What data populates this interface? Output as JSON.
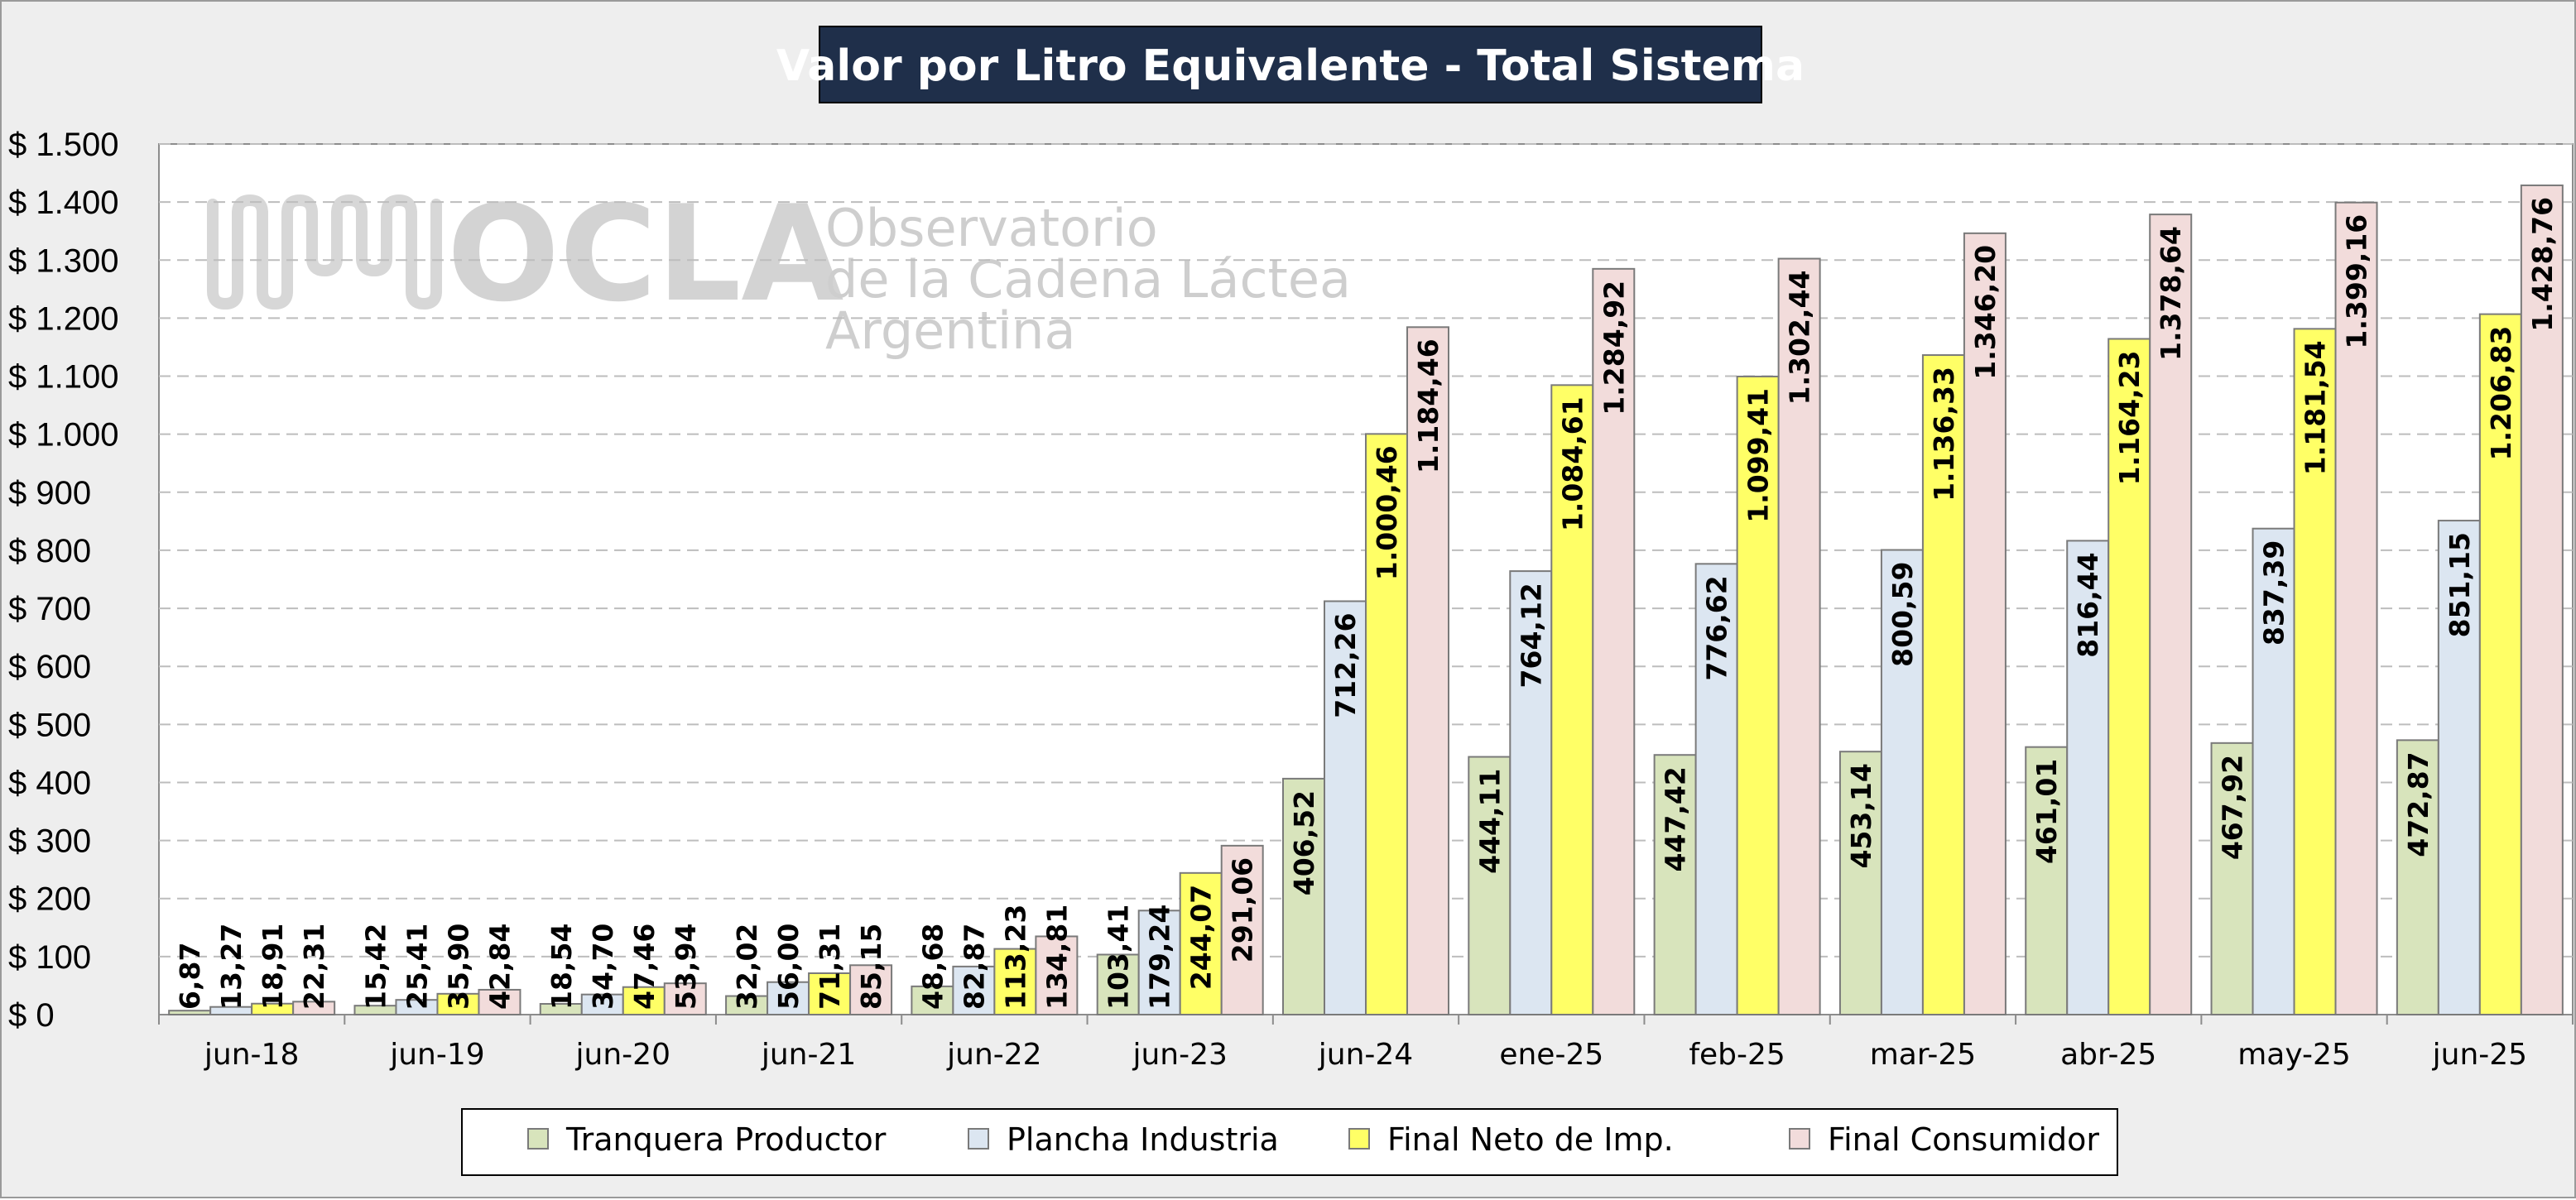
{
  "watermark": {
    "logo": "OCLA",
    "line1": "Observatorio",
    "line2": "de la Cadena Láctea",
    "line3": "Argentina"
  },
  "chart_data": {
    "type": "bar",
    "title": "Valor por Litro Equivalente - Total Sistema",
    "xlabel": "",
    "ylabel": "",
    "ylim": [
      0,
      1500
    ],
    "yticks": [
      0,
      100,
      200,
      300,
      400,
      500,
      600,
      700,
      800,
      900,
      1000,
      1100,
      1200,
      1300,
      1400,
      1500
    ],
    "ytick_labels": [
      "$ 0",
      "$ 100",
      "$ 200",
      "$ 300",
      "$ 400",
      "$ 500",
      "$ 600",
      "$ 700",
      "$ 800",
      "$ 900",
      "$ 1.000",
      "$ 1.100",
      "$ 1.200",
      "$ 1.300",
      "$ 1.400",
      "$ 1.500"
    ],
    "grid": "horizontal dashed",
    "legend_position": "bottom",
    "categories": [
      "jun-18",
      "jun-19",
      "jun-20",
      "jun-21",
      "jun-22",
      "jun-23",
      "jun-24",
      "ene-25",
      "feb-25",
      "mar-25",
      "abr-25",
      "may-25",
      "jun-25"
    ],
    "series": [
      {
        "name": "Tranquera Productor",
        "color": "#d8e4bc",
        "values": [
          6.87,
          15.42,
          18.54,
          32.02,
          48.68,
          103.41,
          406.52,
          444.11,
          447.42,
          453.14,
          461.01,
          467.92,
          472.87
        ],
        "labels": [
          "6,87",
          "15,42",
          "18,54",
          "32,02",
          "48,68",
          "103,41",
          "406,52",
          "444,11",
          "447,42",
          "453,14",
          "461,01",
          "467,92",
          "472,87"
        ]
      },
      {
        "name": "Plancha Industria",
        "color": "#dce6f1",
        "values": [
          13.27,
          25.41,
          34.7,
          56.0,
          82.87,
          179.24,
          712.26,
          764.12,
          776.62,
          800.59,
          816.44,
          837.39,
          851.15
        ],
        "labels": [
          "13,27",
          "25,41",
          "34,70",
          "56,00",
          "82,87",
          "179,24",
          "712,26",
          "764,12",
          "776,62",
          "800,59",
          "816,44",
          "837,39",
          "851,15"
        ]
      },
      {
        "name": "Final Neto de Imp.",
        "color": "#ffff66",
        "values": [
          18.91,
          35.9,
          47.46,
          71.31,
          113.23,
          244.07,
          1000.46,
          1084.61,
          1099.41,
          1136.33,
          1164.23,
          1181.54,
          1206.83
        ],
        "labels": [
          "18,91",
          "35,90",
          "47,46",
          "71,31",
          "113,23",
          "244,07",
          "1.000,46",
          "1.084,61",
          "1.099,41",
          "1.136,33",
          "1.164,23",
          "1.181,54",
          "1.206,83"
        ]
      },
      {
        "name": "Final Consumidor",
        "color": "#f2dcdb",
        "values": [
          22.31,
          42.84,
          53.94,
          85.15,
          134.81,
          291.06,
          1184.46,
          1284.92,
          1302.44,
          1346.2,
          1378.64,
          1399.16,
          1428.76
        ],
        "labels": [
          "22,31",
          "42,84",
          "53,94",
          "85,15",
          "134,81",
          "291,06",
          "1.184,46",
          "1.284,92",
          "1.302,44",
          "1.346,20",
          "1.378,64",
          "1.399,16",
          "1.428,76"
        ]
      }
    ]
  }
}
